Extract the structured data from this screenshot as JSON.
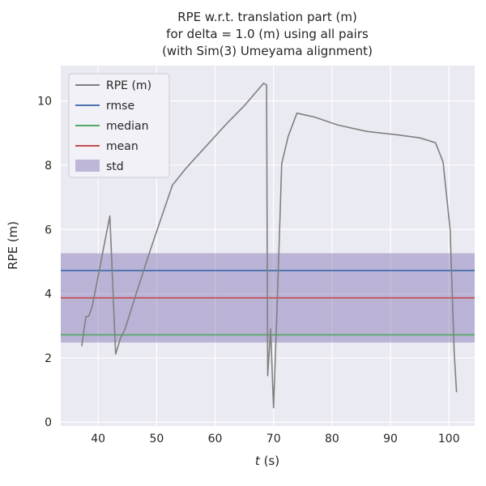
{
  "title": {
    "line1": "RPE w.r.t. translation part (m)",
    "line2": "for delta = 1.0 (m) using all pairs",
    "line3": "(with Sim(3) Umeyama alignment)"
  },
  "axes": {
    "xlabel_italic": "t",
    "xlabel_rest": " (s)",
    "ylabel": "RPE (m)",
    "xticks": [
      40,
      50,
      60,
      70,
      80,
      90,
      100
    ],
    "yticks": [
      0,
      2,
      4,
      6,
      8,
      10
    ]
  },
  "legend": {
    "rpe": "RPE (m)",
    "rmse": "rmse",
    "median": "median",
    "mean": "mean",
    "std": "std"
  },
  "colors": {
    "plot_background": "#EAEAF2",
    "grid": "#FFFFFF",
    "text": "#262626",
    "legend_background": "#F2F1F7",
    "legend_border": "#CBCBD4"
  },
  "chart_data": {
    "type": "line",
    "title": "RPE w.r.t. translation part (m) for delta = 1.0 (m) using all pairs (with Sim(3) Umeyama alignment)",
    "xlabel": "t (s)",
    "ylabel": "RPE (m)",
    "xlim": [
      33.6,
      104.4
    ],
    "ylim": [
      -0.12,
      11.1
    ],
    "grid": true,
    "legend_position": "upper left",
    "series": [
      {
        "name": "RPE (m)",
        "color": "#808080",
        "points": [
          [
            37.2,
            2.38
          ],
          [
            37.9,
            3.28
          ],
          [
            38.4,
            3.3
          ],
          [
            39.0,
            3.62
          ],
          [
            42.0,
            6.42
          ],
          [
            43.0,
            2.12
          ],
          [
            43.8,
            2.6
          ],
          [
            44.6,
            2.9
          ],
          [
            46.5,
            4.0
          ],
          [
            49.0,
            5.4
          ],
          [
            52.7,
            7.38
          ],
          [
            55.0,
            7.9
          ],
          [
            58.0,
            8.5
          ],
          [
            62.0,
            9.3
          ],
          [
            65.0,
            9.85
          ],
          [
            68.3,
            10.55
          ],
          [
            68.8,
            10.5
          ],
          [
            69.0,
            1.45
          ],
          [
            69.5,
            2.9
          ],
          [
            70.0,
            0.45
          ],
          [
            70.6,
            3.5
          ],
          [
            71.4,
            8.05
          ],
          [
            72.5,
            8.9
          ],
          [
            74.0,
            9.62
          ],
          [
            77.0,
            9.5
          ],
          [
            81.0,
            9.25
          ],
          [
            86.0,
            9.05
          ],
          [
            91.0,
            8.95
          ],
          [
            95.0,
            8.85
          ],
          [
            97.7,
            8.7
          ],
          [
            99.0,
            8.1
          ],
          [
            100.2,
            6.0
          ],
          [
            100.9,
            2.2
          ],
          [
            101.3,
            0.95
          ]
        ]
      }
    ],
    "stats": {
      "rmse": {
        "value": 4.72,
        "color": "#4C72B0"
      },
      "median": {
        "value": 2.72,
        "color": "#55A868"
      },
      "mean": {
        "value": 3.87,
        "color": "#C44E52"
      },
      "std": {
        "value": 1.39,
        "band": [
          2.48,
          5.26
        ],
        "color": "#8172B2",
        "opacity": 0.45
      }
    }
  }
}
